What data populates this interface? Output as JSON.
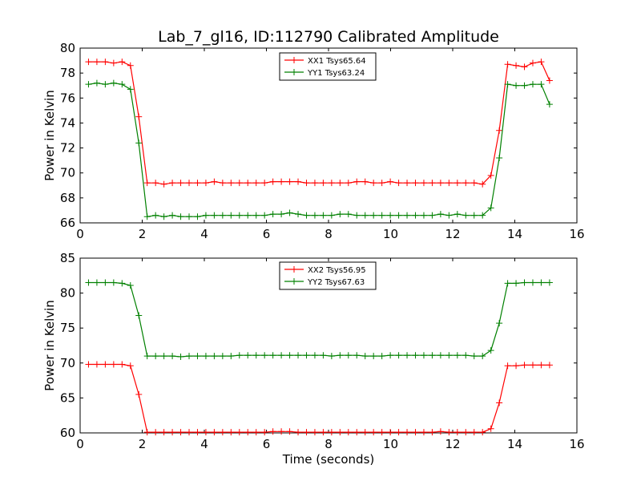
{
  "title": "Lab_7_gl16, ID:112790 Calibrated Amplitude",
  "chart_data": [
    {
      "type": "line",
      "ylabel": "Power in Kelvin",
      "xlabel": "",
      "xlim": [
        0,
        16
      ],
      "ylim": [
        66,
        80
      ],
      "xticks": [
        0,
        2,
        4,
        6,
        8,
        10,
        12,
        14,
        16
      ],
      "yticks": [
        66,
        68,
        70,
        72,
        74,
        76,
        78,
        80
      ],
      "legend": "top-center",
      "grid": false,
      "x": [
        0.27,
        0.54,
        0.81,
        1.08,
        1.35,
        1.62,
        1.89,
        2.16,
        2.43,
        2.7,
        2.97,
        3.24,
        3.51,
        3.78,
        4.05,
        4.32,
        4.59,
        4.86,
        5.13,
        5.4,
        5.67,
        5.94,
        6.21,
        6.48,
        6.75,
        7.02,
        7.29,
        7.56,
        7.83,
        8.1,
        8.37,
        8.64,
        8.91,
        9.18,
        9.45,
        9.72,
        9.99,
        10.26,
        10.53,
        10.8,
        11.07,
        11.34,
        11.61,
        11.88,
        12.15,
        12.42,
        12.69,
        12.96,
        13.23,
        13.5,
        13.77,
        14.04,
        14.31,
        14.58,
        14.85,
        15.12
      ],
      "series": [
        {
          "name": "XX1 Tsys65.64",
          "color": "#ff0000",
          "values": [
            78.9,
            78.9,
            78.9,
            78.8,
            78.9,
            78.6,
            74.5,
            69.2,
            69.2,
            69.1,
            69.2,
            69.2,
            69.2,
            69.2,
            69.2,
            69.3,
            69.2,
            69.2,
            69.2,
            69.2,
            69.2,
            69.2,
            69.3,
            69.3,
            69.3,
            69.3,
            69.2,
            69.2,
            69.2,
            69.2,
            69.2,
            69.2,
            69.3,
            69.3,
            69.2,
            69.2,
            69.3,
            69.2,
            69.2,
            69.2,
            69.2,
            69.2,
            69.2,
            69.2,
            69.2,
            69.2,
            69.2,
            69.1,
            69.8,
            73.4,
            78.7,
            78.6,
            78.5,
            78.8,
            78.9,
            77.4
          ]
        },
        {
          "name": "YY1 Tsys63.24",
          "color": "#008000",
          "values": [
            77.1,
            77.2,
            77.1,
            77.2,
            77.1,
            76.7,
            72.4,
            66.5,
            66.6,
            66.5,
            66.6,
            66.5,
            66.5,
            66.5,
            66.6,
            66.6,
            66.6,
            66.6,
            66.6,
            66.6,
            66.6,
            66.6,
            66.7,
            66.7,
            66.8,
            66.7,
            66.6,
            66.6,
            66.6,
            66.6,
            66.7,
            66.7,
            66.6,
            66.6,
            66.6,
            66.6,
            66.6,
            66.6,
            66.6,
            66.6,
            66.6,
            66.6,
            66.7,
            66.6,
            66.7,
            66.6,
            66.6,
            66.6,
            67.2,
            71.2,
            77.1,
            77.0,
            77.0,
            77.1,
            77.1,
            75.5
          ]
        }
      ]
    },
    {
      "type": "line",
      "ylabel": "Power in Kelvin",
      "xlabel": "Time (seconds)",
      "xlim": [
        0,
        16
      ],
      "ylim": [
        60,
        85
      ],
      "xticks": [
        0,
        2,
        4,
        6,
        8,
        10,
        12,
        14,
        16
      ],
      "yticks": [
        60,
        65,
        70,
        75,
        80,
        85
      ],
      "legend": "top-center",
      "grid": false,
      "x": [
        0.27,
        0.54,
        0.81,
        1.08,
        1.35,
        1.62,
        1.89,
        2.16,
        2.43,
        2.7,
        2.97,
        3.24,
        3.51,
        3.78,
        4.05,
        4.32,
        4.59,
        4.86,
        5.13,
        5.4,
        5.67,
        5.94,
        6.21,
        6.48,
        6.75,
        7.02,
        7.29,
        7.56,
        7.83,
        8.1,
        8.37,
        8.64,
        8.91,
        9.18,
        9.45,
        9.72,
        9.99,
        10.26,
        10.53,
        10.8,
        11.07,
        11.34,
        11.61,
        11.88,
        12.15,
        12.42,
        12.69,
        12.96,
        13.23,
        13.5,
        13.77,
        14.04,
        14.31,
        14.58,
        14.85,
        15.12
      ],
      "series": [
        {
          "name": "XX2 Tsys56.95",
          "color": "#ff0000",
          "values": [
            69.8,
            69.8,
            69.8,
            69.8,
            69.8,
            69.6,
            65.5,
            60.1,
            60.1,
            60.1,
            60.1,
            60.1,
            60.1,
            60.1,
            60.1,
            60.1,
            60.1,
            60.1,
            60.1,
            60.1,
            60.1,
            60.1,
            60.2,
            60.2,
            60.2,
            60.1,
            60.1,
            60.1,
            60.1,
            60.1,
            60.1,
            60.1,
            60.1,
            60.1,
            60.1,
            60.1,
            60.1,
            60.1,
            60.1,
            60.1,
            60.1,
            60.1,
            60.2,
            60.1,
            60.1,
            60.1,
            60.1,
            60.1,
            60.6,
            64.3,
            69.6,
            69.6,
            69.7,
            69.7,
            69.7,
            69.7
          ]
        },
        {
          "name": "YY2 Tsys67.63",
          "color": "#008000",
          "values": [
            81.5,
            81.5,
            81.5,
            81.5,
            81.4,
            81.1,
            76.8,
            71.0,
            71.0,
            71.0,
            71.0,
            70.9,
            71.0,
            71.0,
            71.0,
            71.0,
            71.0,
            71.0,
            71.1,
            71.1,
            71.1,
            71.1,
            71.1,
            71.1,
            71.1,
            71.1,
            71.1,
            71.1,
            71.1,
            71.0,
            71.1,
            71.1,
            71.1,
            71.0,
            71.0,
            71.0,
            71.1,
            71.1,
            71.1,
            71.1,
            71.1,
            71.1,
            71.1,
            71.1,
            71.1,
            71.1,
            71.0,
            71.0,
            71.8,
            75.7,
            81.4,
            81.4,
            81.5,
            81.5,
            81.5,
            81.5
          ]
        }
      ]
    }
  ]
}
